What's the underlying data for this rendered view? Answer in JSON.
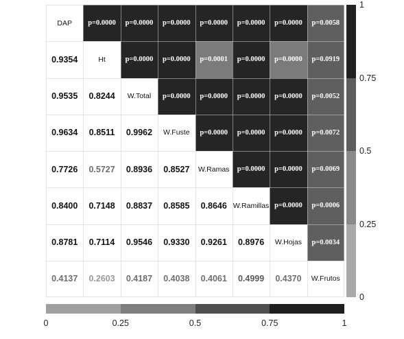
{
  "chart_data": {
    "type": "heatmap",
    "variables": [
      "DAP",
      "Ht",
      "W.Total",
      "W.Fuste",
      "W.Ramas",
      "W.Ramillas",
      "W.Hojas",
      "W.Frutos"
    ],
    "correlations": [
      [
        null,
        null,
        null,
        null,
        null,
        null,
        null,
        null
      ],
      [
        "0.9354",
        null,
        null,
        null,
        null,
        null,
        null,
        null
      ],
      [
        "0.9535",
        "0.8244",
        null,
        null,
        null,
        null,
        null,
        null
      ],
      [
        "0.9634",
        "0.8511",
        "0.9962",
        null,
        null,
        null,
        null,
        null
      ],
      [
        "0.7726",
        "0.5727",
        "0.8936",
        "0.8527",
        null,
        null,
        null,
        null
      ],
      [
        "0.8400",
        "0.7148",
        "0.8837",
        "0.8585",
        "0.8646",
        null,
        null,
        null
      ],
      [
        "0.8781",
        "0.7114",
        "0.9546",
        "0.9330",
        "0.9261",
        "0.8976",
        null,
        null
      ],
      [
        "0.4137",
        "0.2603",
        "0.4187",
        "0.4038",
        "0.4061",
        "0.4999",
        "0.4370",
        null
      ]
    ],
    "p_values": [
      [
        null,
        "p=0.0000",
        "p=0.0000",
        "p=0.0000",
        "p=0.0000",
        "p=0.0000",
        "p=0.0000",
        "p=0.0058"
      ],
      [
        null,
        null,
        "p=0.0000",
        "p=0.0000",
        "p=0.0001",
        "p=0.0000",
        "p=0.0000",
        "p=0.0919"
      ],
      [
        null,
        null,
        null,
        "p=0.0000",
        "p=0.0000",
        "p=0.0000",
        "p=0.0000",
        "p=0.0052"
      ],
      [
        null,
        null,
        null,
        null,
        "p=0.0000",
        "p=0.0000",
        "p=0.0000",
        "p=0.0072"
      ],
      [
        null,
        null,
        null,
        null,
        null,
        "p=0.0000",
        "p=0.0000",
        "p=0.0069"
      ],
      [
        null,
        null,
        null,
        null,
        null,
        null,
        "p=0.0000",
        "p=0.0006"
      ],
      [
        null,
        null,
        null,
        null,
        null,
        null,
        null,
        "p=0.0034"
      ],
      [
        null,
        null,
        null,
        null,
        null,
        null,
        null,
        null
      ]
    ],
    "upper_cell_level": [
      [
        null,
        1,
        1,
        1,
        1,
        1,
        1,
        0.5
      ],
      [
        null,
        null,
        1,
        1,
        0.75,
        1,
        0.75,
        0.5
      ],
      [
        null,
        null,
        null,
        1,
        1,
        1,
        1,
        0.5
      ],
      [
        null,
        null,
        null,
        null,
        1,
        1,
        1,
        0.5
      ],
      [
        null,
        null,
        null,
        null,
        null,
        1,
        1,
        0.5
      ],
      [
        null,
        null,
        null,
        null,
        null,
        null,
        1,
        0.5
      ],
      [
        null,
        null,
        null,
        null,
        null,
        null,
        null,
        0.5
      ],
      [
        null,
        null,
        null,
        null,
        null,
        null,
        null,
        null
      ]
    ],
    "lower_text_level": [
      [
        null,
        null,
        null,
        null,
        null,
        null,
        null,
        null
      ],
      [
        1,
        null,
        null,
        null,
        null,
        null,
        null,
        null
      ],
      [
        1,
        1,
        null,
        null,
        null,
        null,
        null,
        null
      ],
      [
        1,
        1,
        1,
        null,
        null,
        null,
        null,
        null
      ],
      [
        1,
        0.5,
        1,
        1,
        null,
        null,
        null,
        null
      ],
      [
        1,
        1,
        1,
        1,
        1,
        null,
        null,
        null
      ],
      [
        1,
        1,
        1,
        1,
        1,
        1,
        null,
        null
      ],
      [
        0.5,
        0.25,
        0.5,
        0.5,
        0.5,
        0.75,
        0.5,
        null
      ]
    ],
    "colorbar_vertical": {
      "ticks": [
        "0",
        "0.25",
        "0.5",
        "0.75",
        "1"
      ],
      "segments": [
        {
          "from": 0,
          "to": 0.25,
          "color": "#a8a8a8"
        },
        {
          "from": 0.25,
          "to": 0.5,
          "color": "#8a8a8a"
        },
        {
          "from": 0.5,
          "to": 0.75,
          "color": "#5c5c5c"
        },
        {
          "from": 0.75,
          "to": 1,
          "color": "#222222"
        }
      ]
    },
    "colorbar_horizontal": {
      "ticks": [
        "0",
        "0.25",
        "0.5",
        "0.75",
        "1"
      ],
      "segments": [
        {
          "from": 0,
          "to": 0.25,
          "color": "#a0a0a0"
        },
        {
          "from": 0.25,
          "to": 0.5,
          "color": "#7e7e7e"
        },
        {
          "from": 0.5,
          "to": 0.75,
          "color": "#4e4e4e"
        },
        {
          "from": 0.75,
          "to": 1,
          "color": "#1f1f1f"
        }
      ]
    },
    "level_colors": {
      "0.25": "#9a9a9a",
      "0.5": "#6e6e6e",
      "0.75": "#595959",
      "1": "#111111"
    },
    "fill_colors": {
      "0.5": "#5f5f5f",
      "0.75": "#7b7b7b",
      "1": "#252525"
    }
  }
}
